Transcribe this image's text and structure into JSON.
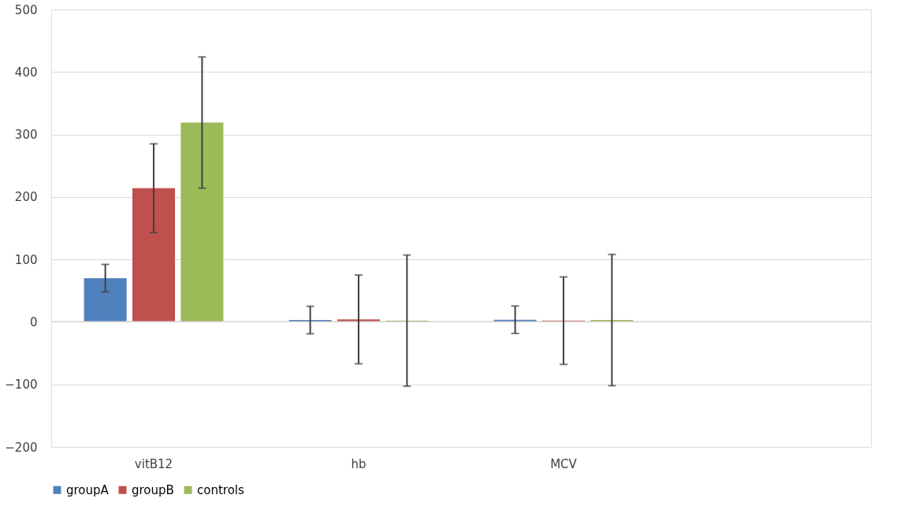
{
  "chart_data": {
    "type": "bar",
    "categories": [
      "vitB12",
      "hb",
      "MCV",
      null
    ],
    "series": [
      {
        "name": "groupA",
        "color": "#4f81bd",
        "values": [
          70,
          3,
          3.5,
          null
        ],
        "errors": [
          22,
          22,
          22,
          null
        ]
      },
      {
        "name": "groupB",
        "color": "#c0504d",
        "values": [
          214,
          4,
          2,
          null
        ],
        "errors": [
          71,
          71,
          70,
          null
        ]
      },
      {
        "name": "controls",
        "color": "#9bbb59",
        "values": [
          319,
          2,
          3,
          null
        ],
        "errors": [
          105,
          105,
          105,
          null
        ]
      }
    ],
    "ylim": [
      -200,
      500
    ],
    "yticks": [
      -200,
      -100,
      0,
      100,
      200,
      300,
      400,
      500
    ],
    "grid": "y",
    "legend": "bottom"
  }
}
